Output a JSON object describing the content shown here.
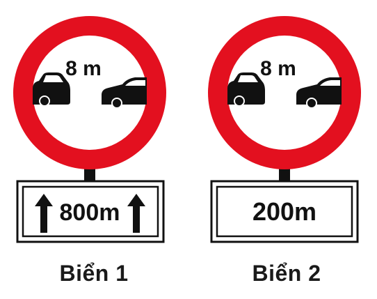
{
  "colors": {
    "ring": "#e3101f",
    "ink": "#111111",
    "background": "#ffffff"
  },
  "signs": [
    {
      "gap_label": "8 m",
      "plate_text": "800m",
      "plate_arrows": true,
      "caption": "Biển 1"
    },
    {
      "gap_label": "8 m",
      "plate_text": "200m",
      "plate_arrows": false,
      "caption": "Biển 2"
    }
  ]
}
